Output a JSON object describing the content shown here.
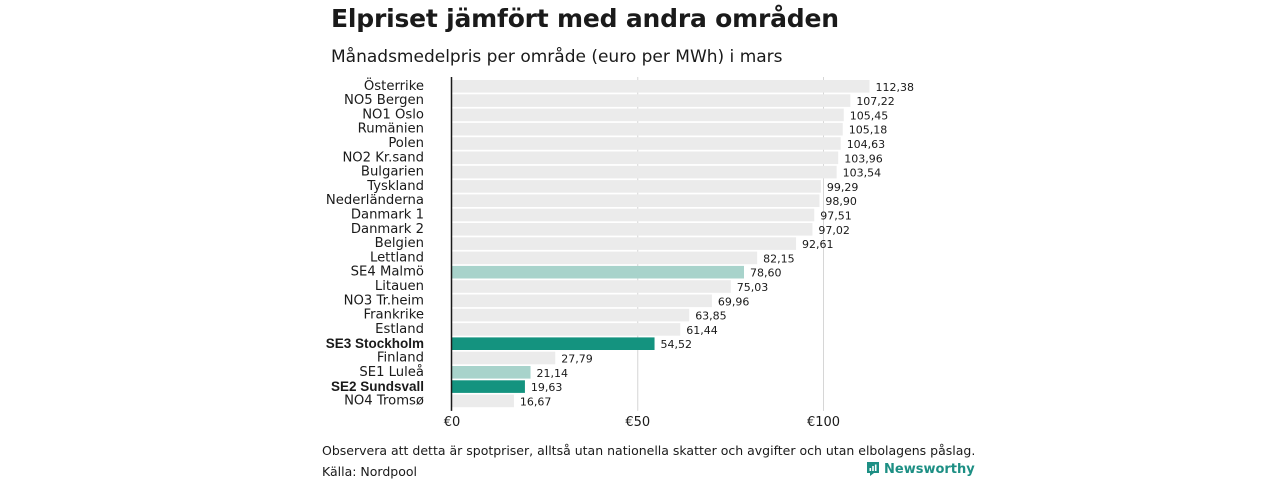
{
  "chart_data": {
    "type": "bar",
    "orientation": "horizontal",
    "title": "Elpriset jämfört med andra områden",
    "subtitle": "Månadsmedelpris per område (euro per MWh) i mars",
    "categories": [
      "Österrike",
      "NO5 Bergen",
      "NO1 Oslo",
      "Rumänien",
      "Polen",
      "NO2 Kr.sand",
      "Bulgarien",
      "Tyskland",
      "Nederländerna",
      "Danmark  1",
      "Danmark  2",
      "Belgien",
      "Lettland",
      "SE4 Malmö",
      "Litauen",
      "NO3 Tr.heim",
      "Frankrike",
      "Estland",
      "SE3 Stockholm",
      "Finland",
      "SE1  Luleå",
      "SE2 Sundsvall",
      "NO4 Tromsø"
    ],
    "values": [
      112.38,
      107.22,
      105.45,
      105.18,
      104.63,
      103.96,
      103.54,
      99.29,
      98.9,
      97.51,
      97.02,
      92.61,
      82.15,
      78.6,
      75.03,
      69.96,
      63.85,
      61.44,
      54.52,
      27.79,
      21.14,
      19.63,
      16.67
    ],
    "value_labels": [
      "112,38",
      "107,22",
      "105,45",
      "105,18",
      "104,63",
      "103,96",
      "103,54",
      "99,29",
      "98,90",
      "97,51",
      "97,02",
      "92,61",
      "82,15",
      "78,60",
      "75,03",
      "69,96",
      "63,85",
      "61,44",
      "54,52",
      "27,79",
      "21,14",
      "19,63",
      "16,67"
    ],
    "highlight": [
      "default",
      "default",
      "default",
      "default",
      "default",
      "default",
      "default",
      "default",
      "default",
      "default",
      "default",
      "default",
      "default",
      "light",
      "default",
      "default",
      "default",
      "default",
      "strong",
      "default",
      "light",
      "strong",
      "default"
    ],
    "xlim": [
      0,
      120
    ],
    "xticks": [
      0,
      50,
      100
    ],
    "xtick_labels": [
      "€0",
      "€50",
      "€100"
    ],
    "grid": true,
    "colors": {
      "default": "#ebebeb",
      "light": "#a8d3cb",
      "strong": "#14937f",
      "axis": "#1a1a1a",
      "grid": "#d6d6d6"
    }
  },
  "footer": {
    "note": "Observera att detta är spotpriser, alltså utan nationella skatter och avgifter och utan elbolagens påslag.",
    "source": "Källa: Nordpool",
    "brand": "Newsworthy",
    "brand_icon": "newsworthy-logo-icon",
    "brand_color": "#1d8f84"
  }
}
